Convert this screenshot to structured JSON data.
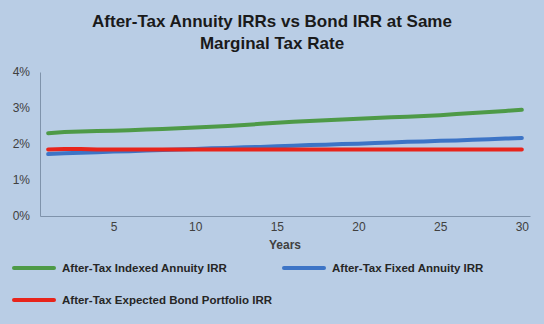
{
  "chart_data": {
    "type": "line",
    "title": "After-Tax Annuity IRRs vs Bond IRR at Same\nMarginal Tax Rate",
    "x_label": "Years",
    "x": [
      1,
      2,
      3,
      4,
      5,
      6,
      7,
      8,
      9,
      10,
      11,
      12,
      13,
      14,
      15,
      16,
      17,
      18,
      19,
      20,
      21,
      22,
      23,
      24,
      25,
      26,
      27,
      28,
      29,
      30
    ],
    "series": [
      {
        "name": "After-Tax Indexed Annuity IRR",
        "color": "#4e9a47",
        "values": [
          2.3,
          2.33,
          2.35,
          2.36,
          2.37,
          2.38,
          2.4,
          2.42,
          2.44,
          2.46,
          2.48,
          2.5,
          2.53,
          2.56,
          2.59,
          2.62,
          2.64,
          2.66,
          2.68,
          2.7,
          2.72,
          2.74,
          2.76,
          2.78,
          2.8,
          2.83,
          2.86,
          2.89,
          2.92,
          2.95
        ]
      },
      {
        "name": "After-Tax Fixed Annuity IRR",
        "color": "#3d74c6",
        "values": [
          1.72,
          1.74,
          1.76,
          1.77,
          1.79,
          1.8,
          1.82,
          1.83,
          1.85,
          1.86,
          1.88,
          1.89,
          1.91,
          1.92,
          1.94,
          1.95,
          1.97,
          1.98,
          2.0,
          2.01,
          2.03,
          2.04,
          2.06,
          2.07,
          2.09,
          2.1,
          2.12,
          2.13,
          2.15,
          2.17
        ]
      },
      {
        "name": "After-Tax Expected Bond Portfolio IRR",
        "color": "#e8241b",
        "values": [
          1.85,
          1.86,
          1.86,
          1.85,
          1.85,
          1.85,
          1.85,
          1.85,
          1.85,
          1.85,
          1.85,
          1.85,
          1.85,
          1.85,
          1.85,
          1.85,
          1.85,
          1.85,
          1.85,
          1.85,
          1.85,
          1.85,
          1.85,
          1.85,
          1.85,
          1.85,
          1.85,
          1.85,
          1.85,
          1.85
        ]
      }
    ],
    "xlim": [
      0.5,
      30.5
    ],
    "xticks": [
      5,
      10,
      15,
      20,
      25,
      30
    ],
    "ylim": [
      0,
      4
    ],
    "yticks": [
      {
        "value": 0,
        "label": "0%"
      },
      {
        "value": 1,
        "label": "1%"
      },
      {
        "value": 2,
        "label": "2%"
      },
      {
        "value": 3,
        "label": "3%"
      },
      {
        "value": 4,
        "label": "4%"
      }
    ],
    "grid": false,
    "legend": "bottom"
  }
}
